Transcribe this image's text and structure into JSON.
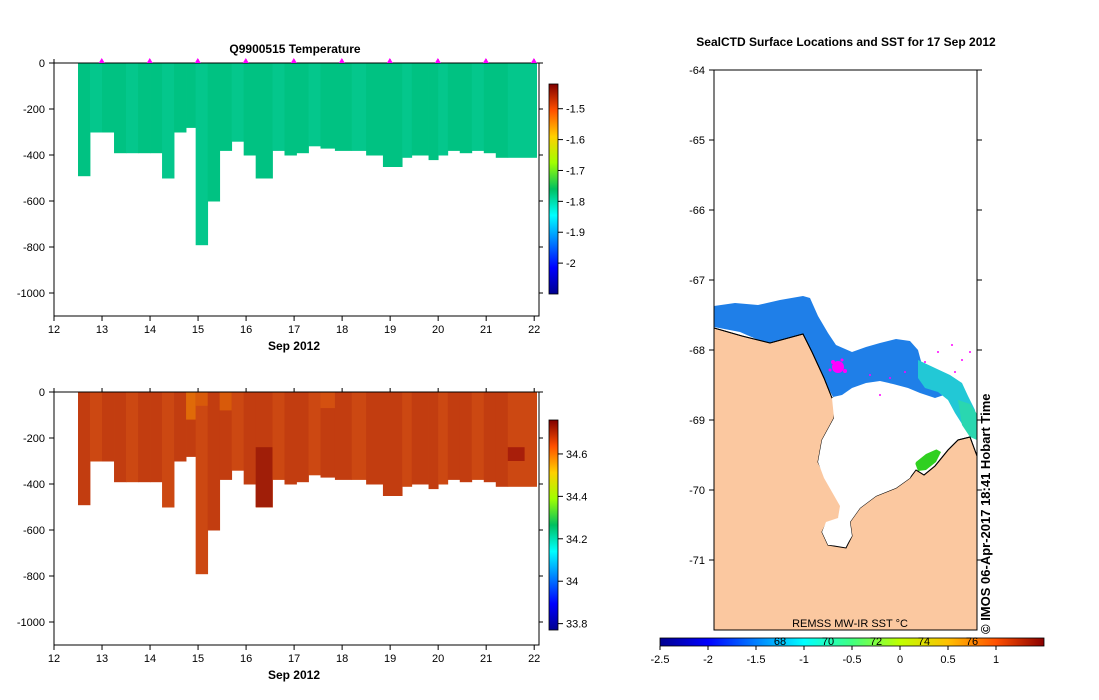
{
  "chart_data": [
    {
      "type": "heatmap",
      "title": "Q9900515  Temperature",
      "xlabel": "Sep 2012",
      "ylabel": "",
      "xlim": [
        12,
        22.1
      ],
      "ylim": [
        -1100,
        0
      ],
      "x_ticks": [
        "12",
        "13",
        "14",
        "15",
        "16",
        "17",
        "18",
        "19",
        "20",
        "21",
        "22"
      ],
      "y_ticks": [
        "0",
        "-200",
        "-400",
        "-600",
        "-800",
        "-1000"
      ],
      "colorbar": {
        "min": -2.1,
        "max": -1.42,
        "ticks": [
          "-1.5",
          "-1.6",
          "-1.7",
          "-1.8",
          "-1.9",
          "-2"
        ],
        "tick_values": [
          -1.5,
          -1.6,
          -1.7,
          -1.8,
          -1.9,
          -2.0
        ]
      },
      "profile_markers_days": [
        13,
        14,
        15,
        16,
        17,
        18,
        19,
        20,
        21,
        22
      ],
      "profiles": [
        {
          "x0": 12.5,
          "x1": 12.75,
          "depth": 490
        },
        {
          "x0": 12.75,
          "x1": 13.0,
          "depth": 300
        },
        {
          "x0": 13.0,
          "x1": 13.25,
          "depth": 300
        },
        {
          "x0": 13.25,
          "x1": 13.5,
          "depth": 390
        },
        {
          "x0": 13.5,
          "x1": 13.75,
          "depth": 390
        },
        {
          "x0": 13.75,
          "x1": 14.0,
          "depth": 390
        },
        {
          "x0": 14.0,
          "x1": 14.25,
          "depth": 390
        },
        {
          "x0": 14.25,
          "x1": 14.5,
          "depth": 500
        },
        {
          "x0": 14.5,
          "x1": 14.75,
          "depth": 300
        },
        {
          "x0": 14.75,
          "x1": 14.95,
          "depth": 280
        },
        {
          "x0": 14.95,
          "x1": 15.2,
          "depth": 790
        },
        {
          "x0": 15.2,
          "x1": 15.45,
          "depth": 600
        },
        {
          "x0": 15.45,
          "x1": 15.7,
          "depth": 380
        },
        {
          "x0": 15.7,
          "x1": 15.95,
          "depth": 340
        },
        {
          "x0": 15.95,
          "x1": 16.2,
          "depth": 400
        },
        {
          "x0": 16.2,
          "x1": 16.55,
          "depth": 500
        },
        {
          "x0": 16.55,
          "x1": 16.8,
          "depth": 380
        },
        {
          "x0": 16.8,
          "x1": 17.05,
          "depth": 400
        },
        {
          "x0": 17.05,
          "x1": 17.3,
          "depth": 390
        },
        {
          "x0": 17.3,
          "x1": 17.55,
          "depth": 360
        },
        {
          "x0": 17.55,
          "x1": 17.85,
          "depth": 370
        },
        {
          "x0": 17.85,
          "x1": 18.2,
          "depth": 380
        },
        {
          "x0": 18.2,
          "x1": 18.5,
          "depth": 380
        },
        {
          "x0": 18.5,
          "x1": 18.85,
          "depth": 400
        },
        {
          "x0": 18.85,
          "x1": 19.25,
          "depth": 450
        },
        {
          "x0": 19.25,
          "x1": 19.45,
          "depth": 410
        },
        {
          "x0": 19.45,
          "x1": 19.8,
          "depth": 400
        },
        {
          "x0": 19.8,
          "x1": 20.0,
          "depth": 420
        },
        {
          "x0": 20.0,
          "x1": 20.2,
          "depth": 400
        },
        {
          "x0": 20.2,
          "x1": 20.45,
          "depth": 380
        },
        {
          "x0": 20.45,
          "x1": 20.7,
          "depth": 390
        },
        {
          "x0": 20.7,
          "x1": 20.95,
          "depth": 380
        },
        {
          "x0": 20.95,
          "x1": 21.2,
          "depth": 390
        },
        {
          "x0": 21.2,
          "x1": 21.45,
          "depth": 410
        },
        {
          "x0": 21.45,
          "x1": 22.05,
          "depth": 410
        }
      ],
      "field_value_typical": -1.82
    },
    {
      "type": "heatmap",
      "title": "",
      "xlabel": "Sep 2012",
      "ylabel": "",
      "xlim": [
        12,
        22.1
      ],
      "ylim": [
        -1100,
        0
      ],
      "x_ticks": [
        "12",
        "13",
        "14",
        "15",
        "16",
        "17",
        "18",
        "19",
        "20",
        "21",
        "22"
      ],
      "y_ticks": [
        "0",
        "-200",
        "-400",
        "-600",
        "-800",
        "-1000"
      ],
      "colorbar": {
        "min": 33.77,
        "max": 34.76,
        "ticks": [
          "34.6",
          "34.4",
          "34.2",
          "34",
          "33.8"
        ],
        "tick_values": [
          34.6,
          34.4,
          34.2,
          34.0,
          33.8
        ]
      },
      "field_value_typical": 34.68
    },
    {
      "type": "map",
      "title": "SealCTD Surface Locations and SST for 17 Sep 2012",
      "y_ticks": [
        "-64",
        "-65",
        "-66",
        "-67",
        "-68",
        "-69",
        "-70",
        "-71"
      ],
      "y_tick_values": [
        -64,
        -65,
        -66,
        -67,
        -68,
        -69,
        -70,
        -71
      ],
      "ylim": [
        -64,
        -72
      ],
      "colorbar": {
        "label": "REMSS MW-IR SST °C",
        "min": -2.5,
        "max": 1.5,
        "ticks": [
          "-2.5",
          "-2",
          "-1.5",
          "-1",
          "-0.5",
          "0",
          "0.5",
          "1"
        ],
        "tick_values": [
          -2.5,
          -2,
          -1.5,
          -1,
          -0.5,
          0,
          0.5,
          1
        ],
        "ghost_ticks": [
          "68",
          "70",
          "72",
          "74",
          "76"
        ],
        "ghost_tick_values": [
          -1.25,
          -0.75,
          -0.25,
          0.25,
          0.75
        ]
      }
    }
  ],
  "credit": "© IMOS 06-Apr-2017 18:41 Hobart Time",
  "colors": {
    "land": "#fbc8a0",
    "ice_white": "#ffffff",
    "marker": "#ff00ff",
    "temp_water": "#00c282",
    "salt_water": "#c03c10"
  }
}
